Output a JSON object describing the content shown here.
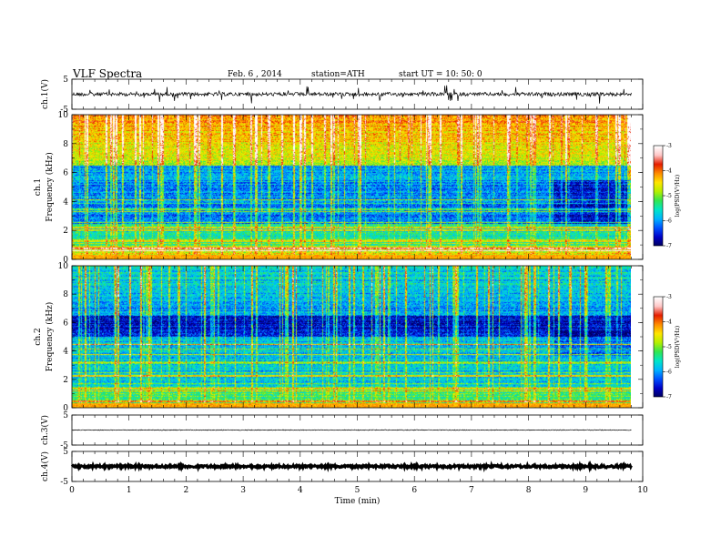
{
  "header": {
    "title": "VLF  Spectra",
    "date": "Feb. 6  , 2014",
    "station": "station=ATH",
    "start": "start  UT  =    10: 50: 0"
  },
  "chart_data": {
    "type": "heatmap",
    "xlabel": "Time  (min)",
    "xlim": [
      0,
      10
    ],
    "x_ticks": [
      "0",
      "1",
      "2",
      "3",
      "4",
      "5",
      "6",
      "7",
      "8",
      "9",
      "10"
    ],
    "data_end_min": 9.8,
    "panels": [
      {
        "kind": "waveform",
        "ylabel": "ch.1(V)",
        "ylim": [
          -5,
          5
        ],
        "y_ticks": [
          "5",
          "-5"
        ],
        "baseline": 0,
        "noise": "impulsive"
      },
      {
        "kind": "spectrogram",
        "channel": "ch.1",
        "ylabel": "Frequency  (kHz)",
        "ylim": [
          0,
          10
        ],
        "y_ticks": [
          "0",
          "2",
          "4",
          "6",
          "8",
          "10"
        ],
        "colorbar": {
          "label": "log(PSD(V²/Hz)",
          "ticks": [
            "-3",
            "-4",
            "-5",
            "-6",
            "-7"
          ],
          "range": [
            -7,
            -3
          ]
        }
      },
      {
        "kind": "spectrogram",
        "channel": "ch.2",
        "ylabel": "Frequency  (kHz)",
        "ylim": [
          0,
          10
        ],
        "y_ticks": [
          "0",
          "2",
          "4",
          "6",
          "8",
          "10"
        ],
        "colorbar": {
          "label": "log(PSD(V²/Hz)",
          "ticks": [
            "-3",
            "-4",
            "-5",
            "-6",
            "-7"
          ],
          "range": [
            -7,
            -3
          ]
        }
      },
      {
        "kind": "waveform",
        "ylabel": "ch.3(V)",
        "ylim": [
          -5,
          5
        ],
        "y_ticks": [
          "5",
          "-5"
        ],
        "baseline": 0,
        "noise": "thin"
      },
      {
        "kind": "waveform",
        "ylabel": "ch.4(V)",
        "ylim": [
          -5,
          5
        ],
        "y_ticks": [
          "5",
          "-5"
        ],
        "baseline": 0,
        "noise": "thick"
      }
    ],
    "colormap": [
      "#00005a",
      "#0000c8",
      "#0050ff",
      "#00b4ff",
      "#00e6c8",
      "#32e650",
      "#b4f000",
      "#ffe600",
      "#ff8c00",
      "#e61e00",
      "#ffc8c8",
      "#ffffff"
    ]
  }
}
